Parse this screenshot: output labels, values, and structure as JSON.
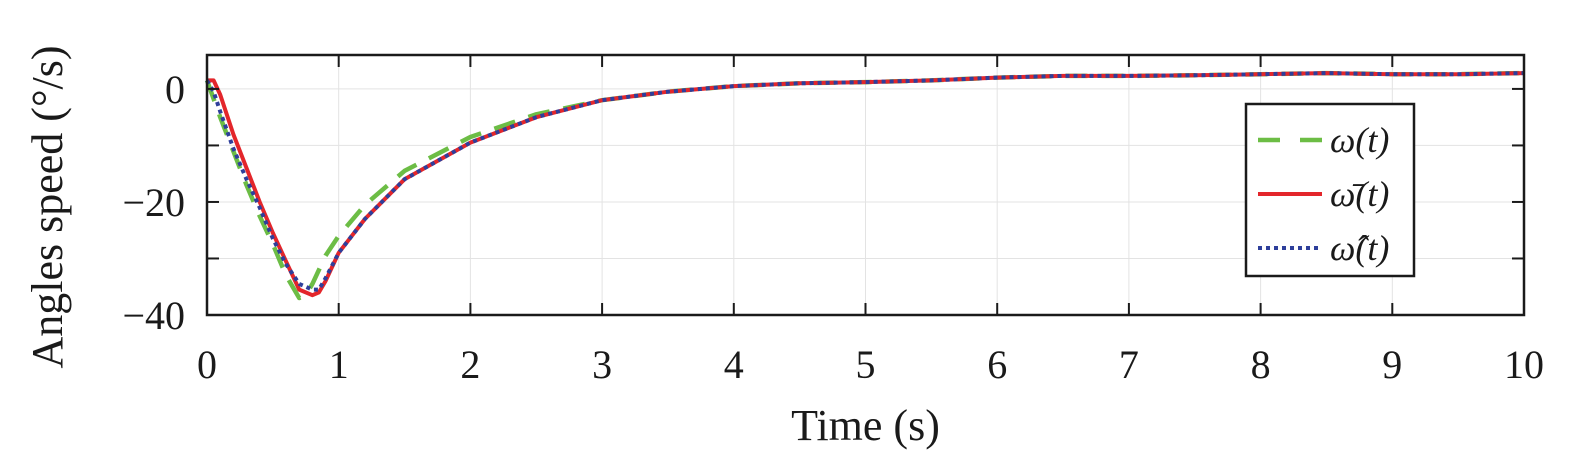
{
  "chart_data": {
    "type": "line",
    "title": "",
    "xlabel": "Time (s)",
    "ylabel": "Angles speed (°/s)",
    "xlim": [
      0,
      10
    ],
    "ylim": [
      -40,
      6
    ],
    "xticks": [
      "0",
      "1",
      "2",
      "3",
      "4",
      "5",
      "6",
      "7",
      "8",
      "9",
      "10"
    ],
    "yticks": [
      "0",
      "−20",
      "−40"
    ],
    "grid": true,
    "legend_position": "right",
    "series": [
      {
        "name": "ω(t)",
        "color": "#6cbd45",
        "style": "dashed",
        "x": [
          0,
          0.1,
          0.2,
          0.3,
          0.4,
          0.5,
          0.6,
          0.7,
          0.75,
          0.8,
          0.9,
          1.0,
          1.2,
          1.5,
          2.0,
          2.5,
          3.0,
          3.5,
          4.0,
          4.5,
          5.0,
          5.5,
          6.0,
          6.5,
          7.0,
          7.5,
          8.0,
          8.5,
          9.0,
          9.5,
          10.0
        ],
        "y": [
          1.5,
          -5,
          -11,
          -17,
          -22.5,
          -27.5,
          -33,
          -37,
          -36.5,
          -34.5,
          -29.5,
          -26,
          -20.5,
          -14.5,
          -8.5,
          -4.5,
          -2,
          -0.5,
          0.5,
          1.0,
          1.2,
          1.5,
          2.0,
          2.3,
          2.3,
          2.4,
          2.6,
          2.8,
          2.6,
          2.6,
          2.8
        ]
      },
      {
        "name": "ω̄(t)",
        "color": "#e3262b",
        "style": "solid",
        "x": [
          0,
          0.05,
          0.1,
          0.2,
          0.3,
          0.4,
          0.5,
          0.6,
          0.7,
          0.8,
          0.85,
          0.9,
          1.0,
          1.2,
          1.5,
          2.0,
          2.5,
          3.0,
          3.5,
          4.0,
          4.5,
          5.0,
          5.5,
          6.0,
          6.5,
          7.0,
          7.5,
          8.0,
          8.5,
          9.0,
          9.5,
          10.0
        ],
        "y": [
          1.5,
          1.5,
          -1,
          -8,
          -14,
          -20,
          -25.5,
          -30.5,
          -35.5,
          -36.5,
          -36,
          -34,
          -29,
          -23,
          -16,
          -9.5,
          -5,
          -2,
          -0.5,
          0.5,
          1.0,
          1.2,
          1.5,
          2.0,
          2.3,
          2.3,
          2.4,
          2.6,
          2.8,
          2.6,
          2.6,
          2.8
        ]
      },
      {
        "name": "ω̂(t)",
        "color": "#2e3f9b",
        "style": "dotted",
        "x": [
          0,
          0.05,
          0.1,
          0.2,
          0.3,
          0.4,
          0.5,
          0.6,
          0.7,
          0.8,
          0.85,
          0.9,
          1.0,
          1.2,
          1.5,
          2.0,
          2.5,
          3.0,
          3.5,
          4.0,
          4.5,
          5.0,
          5.5,
          6.0,
          6.5,
          7.0,
          7.5,
          8.0,
          8.5,
          9.0,
          9.5,
          10.0
        ],
        "y": [
          1.5,
          -0.5,
          -4,
          -10.5,
          -16,
          -21,
          -26.5,
          -31,
          -34.5,
          -35.5,
          -35.5,
          -33.5,
          -29,
          -23,
          -16,
          -9.5,
          -5,
          -2,
          -0.5,
          0.5,
          1.0,
          1.2,
          1.5,
          2.0,
          2.3,
          2.3,
          2.4,
          2.6,
          2.8,
          2.6,
          2.6,
          2.8
        ]
      }
    ]
  }
}
